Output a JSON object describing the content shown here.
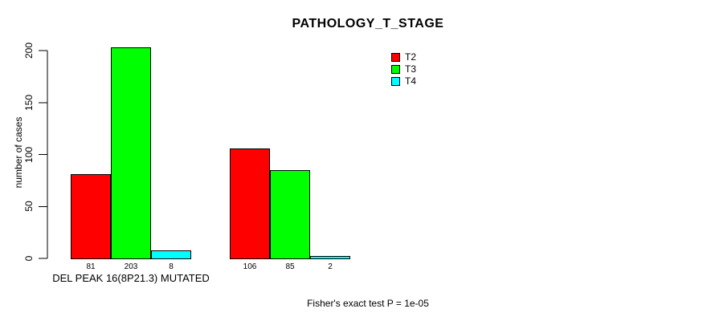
{
  "chart_data": {
    "type": "bar",
    "title": "PATHOLOGY_T_STAGE",
    "ylabel": "number of cases",
    "xlabel": "",
    "ylim": [
      0,
      200
    ],
    "yticks": [
      0,
      50,
      100,
      150,
      200
    ],
    "grid": false,
    "background": "#ffffff",
    "bar_edge_color": "#000000",
    "categories": [
      "DEL PEAK 16(8P21.3) MUTATED",
      ""
    ],
    "series": [
      {
        "name": "T2",
        "color": "#ff0000",
        "values": [
          81,
          106
        ]
      },
      {
        "name": "T3",
        "color": "#00ff00",
        "values": [
          203,
          85
        ]
      },
      {
        "name": "T4",
        "color": "#00ffff",
        "values": [
          8,
          2
        ]
      }
    ],
    "bar_value_labels": [
      [
        81,
        203,
        8
      ],
      [
        106,
        85,
        2
      ]
    ],
    "legend": {
      "position": "top-right",
      "entries": [
        {
          "label": "T2",
          "color": "#ff0000"
        },
        {
          "label": "T3",
          "color": "#00ff00"
        },
        {
          "label": "T4",
          "color": "#00ffff"
        }
      ]
    },
    "annotation": "Fisher's exact test P = 1e-05"
  }
}
